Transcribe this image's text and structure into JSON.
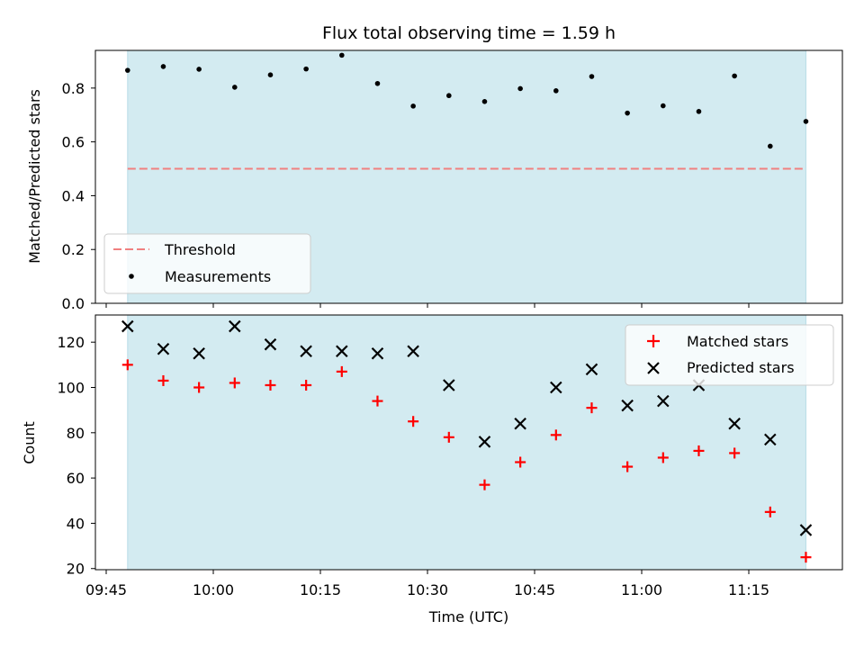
{
  "chart_data": [
    {
      "type": "scatter",
      "title": "Flux total observing time = 1.59 h",
      "ylabel": "Matched/Predicted stars",
      "xlabel": "",
      "ylim": [
        0,
        0.94
      ],
      "yticks": [
        "0.0",
        "0.2",
        "0.4",
        "0.6",
        "0.8"
      ],
      "yticks_values": [
        0.0,
        0.2,
        0.4,
        0.6,
        0.8
      ],
      "shaded_span": [
        "09:48",
        "11:23"
      ],
      "shade_color": "#d3ebf1",
      "threshold": 0.5,
      "threshold_color": "#f08080",
      "legend": {
        "placement": "lower-left",
        "entries": [
          "Threshold",
          "Measurements"
        ]
      },
      "x": [
        "09:48",
        "09:53",
        "09:58",
        "10:03",
        "10:08",
        "10:13",
        "10:18",
        "10:23",
        "10:28",
        "10:33",
        "10:38",
        "10:43",
        "10:48",
        "10:53",
        "10:58",
        "11:03",
        "11:08",
        "11:13",
        "11:18",
        "11:23"
      ],
      "series": [
        {
          "name": "Measurements",
          "color": "#000000",
          "values": [
            0.866,
            0.88,
            0.87,
            0.803,
            0.849,
            0.871,
            0.922,
            0.817,
            0.733,
            0.772,
            0.75,
            0.798,
            0.79,
            0.843,
            0.707,
            0.734,
            0.713,
            0.845,
            0.584,
            0.676
          ]
        }
      ]
    },
    {
      "type": "scatter",
      "title": "",
      "ylabel": "Count",
      "xlabel": "Time (UTC)",
      "ylim": [
        19.5,
        132
      ],
      "yticks": [
        "20",
        "40",
        "60",
        "80",
        "100",
        "120"
      ],
      "yticks_values": [
        20,
        40,
        60,
        80,
        100,
        120
      ],
      "xticks": [
        "09:45",
        "10:00",
        "10:15",
        "10:30",
        "10:45",
        "11:00",
        "11:15"
      ],
      "shaded_span": [
        "09:48",
        "11:23"
      ],
      "shade_color": "#d3ebf1",
      "legend": {
        "placement": "upper-right",
        "entries": [
          "Matched stars",
          "Predicted stars"
        ]
      },
      "x": [
        "09:48",
        "09:53",
        "09:58",
        "10:03",
        "10:08",
        "10:13",
        "10:18",
        "10:23",
        "10:28",
        "10:33",
        "10:38",
        "10:43",
        "10:48",
        "10:53",
        "10:58",
        "11:03",
        "11:08",
        "11:13",
        "11:18",
        "11:23"
      ],
      "series": [
        {
          "name": "Matched stars",
          "marker": "plus",
          "color": "#ff0000",
          "values": [
            110,
            103,
            100,
            102,
            101,
            101,
            107,
            94,
            85,
            78,
            57,
            67,
            79,
            91,
            65,
            69,
            72,
            71,
            45,
            25
          ]
        },
        {
          "name": "Predicted stars",
          "marker": "x",
          "color": "#000000",
          "values": [
            127,
            117,
            115,
            127,
            119,
            116,
            116,
            115,
            116,
            101,
            76,
            84,
            100,
            108,
            92,
            94,
            101,
            84,
            77,
            37
          ]
        }
      ]
    }
  ]
}
